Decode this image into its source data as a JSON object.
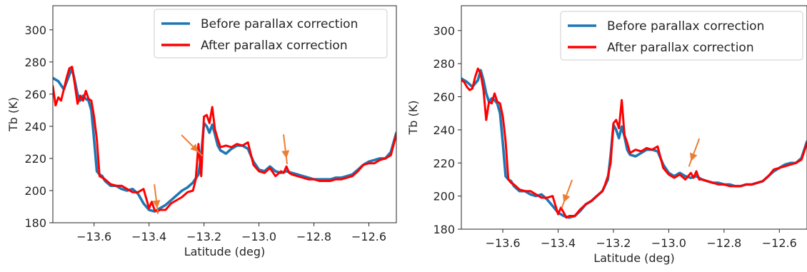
{
  "chart_data": [
    {
      "type": "line",
      "xlabel": "Latitude (deg)",
      "ylabel": "Tb (K)",
      "xlim": [
        -13.75,
        -12.5
      ],
      "ylim": [
        180,
        315
      ],
      "xticks": [
        "−13.6",
        "−13.4",
        "−13.2",
        "−13.0",
        "−12.8",
        "−12.6"
      ],
      "xtick_values": [
        -13.6,
        -13.4,
        -13.2,
        -13.0,
        -12.8,
        -12.6
      ],
      "yticks": [
        "180",
        "200",
        "220",
        "240",
        "260",
        "280",
        "300"
      ],
      "ytick_values": [
        180,
        200,
        220,
        240,
        260,
        280,
        300
      ],
      "legend": {
        "placement": "upper-right",
        "entries": [
          "Before parallax correction",
          "After parallax correction"
        ]
      },
      "series": [
        {
          "name": "Before parallax correction",
          "color": "#1f77b4",
          "x": [
            -13.75,
            -13.73,
            -13.71,
            -13.69,
            -13.68,
            -13.67,
            -13.66,
            -13.65,
            -13.64,
            -13.63,
            -13.62,
            -13.61,
            -13.6,
            -13.59,
            -13.58,
            -13.57,
            -13.56,
            -13.54,
            -13.52,
            -13.5,
            -13.48,
            -13.46,
            -13.44,
            -13.42,
            -13.4,
            -13.38,
            -13.36,
            -13.34,
            -13.32,
            -13.3,
            -13.28,
            -13.26,
            -13.24,
            -13.22,
            -13.21,
            -13.2,
            -13.19,
            -13.18,
            -13.17,
            -13.16,
            -13.15,
            -13.14,
            -13.12,
            -13.1,
            -13.08,
            -13.06,
            -13.04,
            -13.02,
            -13.0,
            -12.98,
            -12.96,
            -12.94,
            -12.92,
            -12.9,
            -12.88,
            -12.86,
            -12.84,
            -12.82,
            -12.8,
            -12.78,
            -12.76,
            -12.74,
            -12.72,
            -12.7,
            -12.68,
            -12.66,
            -12.64,
            -12.62,
            -12.6,
            -12.58,
            -12.56,
            -12.54,
            -12.52,
            -12.5
          ],
          "y": [
            270,
            268,
            263,
            272,
            276,
            268,
            260,
            256,
            259,
            257,
            256,
            250,
            232,
            212,
            210,
            209,
            206,
            203,
            203,
            201,
            200,
            201,
            198,
            192,
            188,
            187,
            189,
            191,
            194,
            197,
            200,
            202,
            205,
            210,
            222,
            242,
            240,
            236,
            241,
            235,
            228,
            225,
            223,
            226,
            228,
            228,
            226,
            218,
            213,
            212,
            215,
            212,
            211,
            212,
            211,
            210,
            209,
            208,
            207,
            207,
            207,
            207,
            208,
            208,
            209,
            210,
            213,
            216,
            218,
            219,
            220,
            220,
            224,
            236
          ]
        },
        {
          "name": "After parallax correction",
          "color": "#ff0000",
          "x": [
            -13.75,
            -13.74,
            -13.73,
            -13.72,
            -13.71,
            -13.7,
            -13.69,
            -13.68,
            -13.67,
            -13.66,
            -13.65,
            -13.64,
            -13.63,
            -13.62,
            -13.61,
            -13.6,
            -13.59,
            -13.58,
            -13.57,
            -13.56,
            -13.54,
            -13.52,
            -13.5,
            -13.48,
            -13.46,
            -13.44,
            -13.42,
            -13.4,
            -13.39,
            -13.38,
            -13.37,
            -13.36,
            -13.34,
            -13.32,
            -13.3,
            -13.28,
            -13.26,
            -13.24,
            -13.23,
            -13.22,
            -13.21,
            -13.2,
            -13.19,
            -13.18,
            -13.17,
            -13.16,
            -13.15,
            -13.14,
            -13.12,
            -13.1,
            -13.08,
            -13.06,
            -13.04,
            -13.02,
            -13.0,
            -12.98,
            -12.96,
            -12.94,
            -12.92,
            -12.91,
            -12.9,
            -12.89,
            -12.88,
            -12.86,
            -12.84,
            -12.82,
            -12.8,
            -12.78,
            -12.76,
            -12.74,
            -12.72,
            -12.7,
            -12.68,
            -12.66,
            -12.64,
            -12.62,
            -12.6,
            -12.58,
            -12.56,
            -12.54,
            -12.52,
            -12.5
          ],
          "y": [
            265,
            253,
            258,
            256,
            263,
            270,
            276,
            277,
            266,
            254,
            259,
            256,
            262,
            257,
            256,
            246,
            232,
            209,
            208,
            207,
            204,
            203,
            203,
            201,
            199,
            199,
            201,
            189,
            193,
            188,
            187,
            188,
            188,
            192,
            194,
            196,
            199,
            200,
            207,
            229,
            209,
            246,
            247,
            242,
            252,
            238,
            232,
            227,
            228,
            227,
            229,
            228,
            230,
            216,
            212,
            211,
            214,
            209,
            212,
            211,
            215,
            211,
            210,
            209,
            208,
            207,
            207,
            206,
            206,
            206,
            207,
            207,
            208,
            209,
            212,
            216,
            217,
            217,
            219,
            220,
            222,
            235
          ]
        }
      ],
      "annotation_arrows": [
        {
          "color": "#ed7d31",
          "target_x": -13.37,
          "target_y": 189,
          "direction": "down"
        },
        {
          "color": "#ed7d31",
          "target_x": -13.22,
          "target_y": 224,
          "direction": "down-right"
        },
        {
          "color": "#ed7d31",
          "target_x": -12.9,
          "target_y": 220,
          "direction": "down"
        }
      ]
    },
    {
      "type": "line",
      "xlabel": "Latitude (deg)",
      "ylabel": "Tb (K)",
      "xlim": [
        -13.75,
        -12.5
      ],
      "ylim": [
        180,
        315
      ],
      "xticks": [
        "−13.6",
        "−13.4",
        "−13.2",
        "−13.0",
        "−12.8",
        "−12.6"
      ],
      "xtick_values": [
        -13.6,
        -13.4,
        -13.2,
        -13.0,
        -12.8,
        -12.6
      ],
      "yticks": [
        "180",
        "200",
        "220",
        "240",
        "260",
        "280",
        "300"
      ],
      "ytick_values": [
        180,
        200,
        220,
        240,
        260,
        280,
        300
      ],
      "legend": {
        "placement": "upper-right",
        "entries": [
          "Before parallax correction",
          "After parallax correction"
        ]
      },
      "series": [
        {
          "name": "Before parallax correction",
          "color": "#1f77b4",
          "x": [
            -13.75,
            -13.73,
            -13.71,
            -13.69,
            -13.68,
            -13.67,
            -13.66,
            -13.65,
            -13.64,
            -13.63,
            -13.62,
            -13.61,
            -13.6,
            -13.59,
            -13.58,
            -13.57,
            -13.56,
            -13.54,
            -13.52,
            -13.5,
            -13.48,
            -13.46,
            -13.44,
            -13.42,
            -13.4,
            -13.38,
            -13.36,
            -13.34,
            -13.32,
            -13.3,
            -13.28,
            -13.26,
            -13.24,
            -13.22,
            -13.21,
            -13.2,
            -13.19,
            -13.18,
            -13.17,
            -13.16,
            -13.15,
            -13.14,
            -13.12,
            -13.1,
            -13.08,
            -13.06,
            -13.04,
            -13.02,
            -13.0,
            -12.98,
            -12.96,
            -12.94,
            -12.92,
            -12.9,
            -12.88,
            -12.86,
            -12.84,
            -12.82,
            -12.8,
            -12.78,
            -12.76,
            -12.74,
            -12.72,
            -12.7,
            -12.68,
            -12.66,
            -12.64,
            -12.62,
            -12.6,
            -12.58,
            -12.56,
            -12.54,
            -12.52,
            -12.5
          ],
          "y": [
            271,
            269,
            266,
            270,
            276,
            270,
            262,
            257,
            259,
            258,
            256,
            250,
            232,
            212,
            210,
            209,
            206,
            203,
            203,
            201,
            200,
            201,
            198,
            194,
            190,
            188,
            187,
            188,
            191,
            195,
            197,
            200,
            203,
            210,
            225,
            243,
            240,
            235,
            242,
            236,
            228,
            225,
            224,
            226,
            228,
            228,
            227,
            219,
            214,
            212,
            214,
            212,
            211,
            212,
            210,
            209,
            208,
            208,
            207,
            207,
            206,
            206,
            207,
            207,
            208,
            209,
            212,
            215,
            217,
            219,
            220,
            220,
            223,
            233
          ]
        },
        {
          "name": "After parallax correction",
          "color": "#ff0000",
          "x": [
            -13.75,
            -13.74,
            -13.73,
            -13.72,
            -13.71,
            -13.7,
            -13.69,
            -13.68,
            -13.67,
            -13.66,
            -13.65,
            -13.64,
            -13.63,
            -13.62,
            -13.61,
            -13.6,
            -13.59,
            -13.58,
            -13.57,
            -13.56,
            -13.54,
            -13.52,
            -13.5,
            -13.48,
            -13.46,
            -13.44,
            -13.42,
            -13.4,
            -13.39,
            -13.38,
            -13.37,
            -13.36,
            -13.34,
            -13.32,
            -13.3,
            -13.28,
            -13.26,
            -13.24,
            -13.23,
            -13.22,
            -13.21,
            -13.2,
            -13.19,
            -13.18,
            -13.17,
            -13.16,
            -13.15,
            -13.14,
            -13.12,
            -13.1,
            -13.08,
            -13.06,
            -13.04,
            -13.02,
            -13.0,
            -12.98,
            -12.96,
            -12.94,
            -12.92,
            -12.91,
            -12.9,
            -12.89,
            -12.88,
            -12.86,
            -12.84,
            -12.82,
            -12.8,
            -12.78,
            -12.76,
            -12.74,
            -12.72,
            -12.7,
            -12.68,
            -12.66,
            -12.64,
            -12.62,
            -12.6,
            -12.58,
            -12.56,
            -12.54,
            -12.52,
            -12.5
          ],
          "y": [
            270,
            269,
            266,
            264,
            265,
            272,
            277,
            274,
            264,
            246,
            257,
            256,
            262,
            257,
            256,
            248,
            233,
            210,
            208,
            207,
            204,
            203,
            203,
            201,
            199,
            199,
            200,
            189,
            193,
            190,
            187,
            188,
            188,
            192,
            195,
            197,
            200,
            203,
            207,
            212,
            220,
            244,
            246,
            241,
            258,
            237,
            232,
            226,
            228,
            227,
            229,
            228,
            230,
            217,
            213,
            211,
            213,
            210,
            214,
            211,
            215,
            210,
            210,
            209,
            208,
            207,
            207,
            206,
            206,
            206,
            207,
            207,
            208,
            209,
            212,
            216,
            217,
            218,
            219,
            220,
            222,
            232
          ]
        }
      ],
      "annotation_arrows": [
        {
          "color": "#ed7d31",
          "target_x": -13.38,
          "target_y": 196,
          "direction": "down-left"
        },
        {
          "color": "#ed7d31",
          "target_x": -12.92,
          "target_y": 221,
          "direction": "down-left"
        }
      ]
    }
  ]
}
